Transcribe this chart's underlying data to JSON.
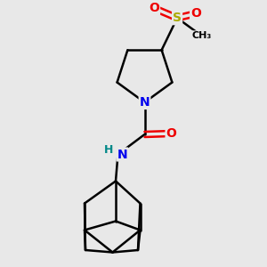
{
  "background_color": "#e8e8e8",
  "atom_colors": {
    "N": "#0000EE",
    "O": "#EE0000",
    "S": "#AAAA00",
    "C": "#000000",
    "H": "#008888"
  },
  "bond_color": "#000000",
  "bond_width": 1.8,
  "figsize": [
    3.0,
    3.0
  ],
  "dpi": 100,
  "xlim": [
    -2.2,
    2.8
  ],
  "ylim": [
    -3.5,
    2.5
  ]
}
